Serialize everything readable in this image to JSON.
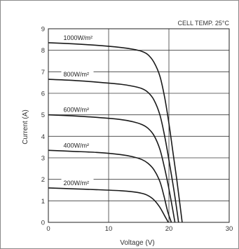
{
  "chart_data": {
    "type": "line",
    "title": "",
    "annotation": "CELL TEMP. 25°C",
    "xlabel": "Voltage (V)",
    "ylabel": "Current (A)",
    "xlim": [
      0,
      30
    ],
    "ylim": [
      0,
      9
    ],
    "x_ticks": [
      0,
      10,
      20,
      30
    ],
    "y_ticks": [
      0,
      1,
      2,
      3,
      4,
      5,
      6,
      7,
      8,
      9
    ],
    "grid": true,
    "series": [
      {
        "name": "1000W/m²",
        "points": [
          [
            0,
            8.35
          ],
          [
            4,
            8.3
          ],
          [
            8,
            8.23
          ],
          [
            12,
            8.13
          ],
          [
            14,
            8.05
          ],
          [
            15.5,
            7.95
          ],
          [
            16.5,
            7.8
          ],
          [
            17.5,
            7.45
          ],
          [
            18.5,
            6.8
          ],
          [
            19.3,
            5.8
          ],
          [
            20,
            4.6
          ],
          [
            20.7,
            3.2
          ],
          [
            21.3,
            2.0
          ],
          [
            21.8,
            0.9
          ],
          [
            22.2,
            0
          ]
        ]
      },
      {
        "name": "800W/m²",
        "points": [
          [
            0,
            6.65
          ],
          [
            4,
            6.6
          ],
          [
            8,
            6.52
          ],
          [
            12,
            6.42
          ],
          [
            14,
            6.33
          ],
          [
            15.5,
            6.22
          ],
          [
            16.5,
            6.05
          ],
          [
            17.5,
            5.7
          ],
          [
            18.5,
            5.0
          ],
          [
            19.3,
            4.0
          ],
          [
            20,
            2.9
          ],
          [
            20.6,
            1.9
          ],
          [
            21.1,
            1.0
          ],
          [
            21.6,
            0
          ]
        ]
      },
      {
        "name": "600W/m²",
        "points": [
          [
            0,
            5.0
          ],
          [
            4,
            4.95
          ],
          [
            8,
            4.88
          ],
          [
            12,
            4.78
          ],
          [
            14,
            4.68
          ],
          [
            15.5,
            4.55
          ],
          [
            16.5,
            4.38
          ],
          [
            17.5,
            4.05
          ],
          [
            18.5,
            3.4
          ],
          [
            19.3,
            2.5
          ],
          [
            19.9,
            1.7
          ],
          [
            20.5,
            0.8
          ],
          [
            21.0,
            0
          ]
        ]
      },
      {
        "name": "400W/m²",
        "points": [
          [
            0,
            3.35
          ],
          [
            4,
            3.3
          ],
          [
            8,
            3.25
          ],
          [
            12,
            3.15
          ],
          [
            14,
            3.05
          ],
          [
            15.5,
            2.92
          ],
          [
            16.5,
            2.75
          ],
          [
            17.5,
            2.45
          ],
          [
            18.5,
            1.9
          ],
          [
            19.2,
            1.2
          ],
          [
            19.8,
            0.5
          ],
          [
            20.4,
            0
          ]
        ]
      },
      {
        "name": "200W/m²",
        "points": [
          [
            0,
            1.6
          ],
          [
            4,
            1.56
          ],
          [
            8,
            1.52
          ],
          [
            12,
            1.47
          ],
          [
            14,
            1.42
          ],
          [
            15.5,
            1.35
          ],
          [
            16.5,
            1.25
          ],
          [
            17.5,
            1.05
          ],
          [
            18.5,
            0.7
          ],
          [
            19.3,
            0.3
          ],
          [
            19.9,
            0
          ]
        ]
      }
    ]
  }
}
